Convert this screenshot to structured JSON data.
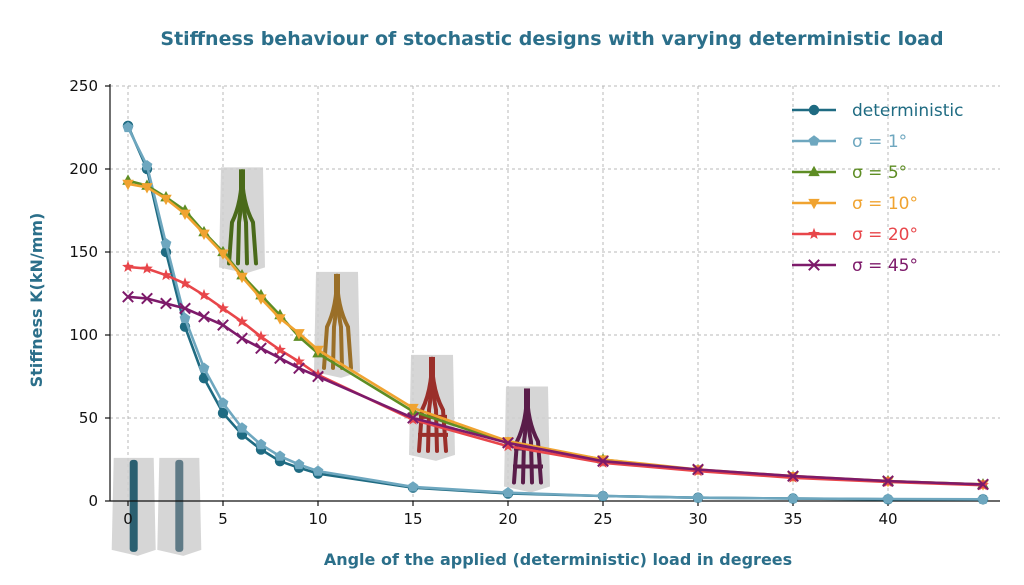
{
  "chart_data": {
    "type": "line",
    "title": "Stiffness behaviour of stochastic designs with varying deterministic load",
    "xlabel": "Angle of the applied (deterministic) load in degrees",
    "ylabel": "Stiffness K(kN/mm)",
    "xlim": [
      0,
      45
    ],
    "ylim": [
      0,
      250
    ],
    "x_ticks": [
      0,
      5,
      10,
      15,
      20,
      25,
      30,
      35,
      40
    ],
    "y_ticks": [
      0,
      50,
      100,
      150,
      200,
      250
    ],
    "grid": true,
    "legend_position": "top-right",
    "x": [
      0,
      1,
      2,
      3,
      4,
      5,
      6,
      7,
      8,
      9,
      10,
      15,
      20,
      25,
      30,
      35,
      40,
      45
    ],
    "series": [
      {
        "name": "deterministic",
        "legend_label": "deterministic",
        "color": "#1f6b82",
        "marker": "circle",
        "values": [
          226,
          200,
          150,
          105,
          74,
          53,
          40,
          31,
          24,
          20,
          16.5,
          8,
          4.5,
          3,
          2,
          1.5,
          1,
          1
        ]
      },
      {
        "name": "σ = 1°",
        "legend_label": "σ = 1°",
        "color": "#6ea7bf",
        "marker": "pentagon",
        "values": [
          225,
          202,
          155,
          110,
          80,
          59,
          44,
          34,
          27,
          22,
          18,
          8.5,
          5,
          3,
          2,
          1.5,
          1.2,
          1
        ]
      },
      {
        "name": "σ = 5°",
        "legend_label": "σ = 5°",
        "color": "#5e8d24",
        "marker": "triangle-up",
        "values": [
          193,
          190,
          183,
          175,
          162,
          150,
          136,
          124,
          112,
          99,
          89,
          54,
          35,
          25,
          18.5,
          14.5,
          12,
          10
        ]
      },
      {
        "name": "σ = 10°",
        "legend_label": "σ = 10°",
        "color": "#f0a330",
        "marker": "triangle-down",
        "values": [
          191,
          189,
          182,
          173,
          161,
          149,
          135,
          122,
          110,
          101,
          91,
          56,
          36,
          25,
          19,
          15,
          12,
          10
        ]
      },
      {
        "name": "σ = 20°",
        "legend_label": "σ = 20°",
        "color": "#e8464a",
        "marker": "star",
        "values": [
          141,
          140,
          136,
          131,
          124,
          116,
          108,
          99,
          91,
          84,
          76,
          49,
          33,
          23,
          18,
          14,
          11.5,
          9.5
        ]
      },
      {
        "name": "σ = 45°",
        "legend_label": "σ = 45°",
        "color": "#7d1a6a",
        "marker": "x",
        "values": [
          123,
          122,
          119,
          116,
          111,
          106,
          98,
          92,
          86,
          80,
          75,
          50,
          35,
          24,
          19,
          15,
          12,
          10
        ]
      }
    ]
  },
  "insets": [
    {
      "name": "deterministic",
      "color": "#2a5f70",
      "anchor": [
        0.3,
        26
      ]
    },
    {
      "name": "σ = 1°",
      "color": "#5f7a86",
      "anchor": [
        2.7,
        26
      ]
    },
    {
      "name": "σ = 5°",
      "color": "#4a6a1a",
      "anchor": [
        6.0,
        201
      ]
    },
    {
      "name": "σ = 10°",
      "color": "#9a6f28",
      "anchor": [
        11.0,
        138
      ]
    },
    {
      "name": "σ = 20°",
      "color": "#9a2f2a",
      "anchor": [
        16.0,
        88
      ]
    },
    {
      "name": "σ = 45°",
      "color": "#5a1d4a",
      "anchor": [
        21.0,
        69
      ]
    }
  ]
}
